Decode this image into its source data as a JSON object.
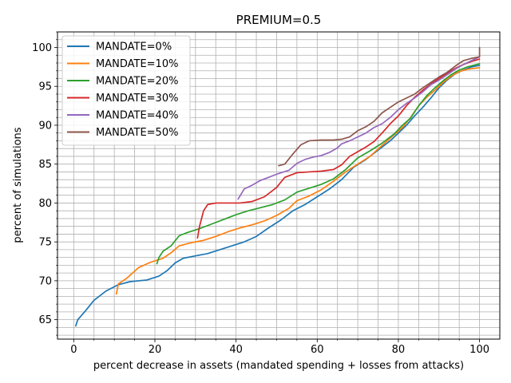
{
  "chart_data": {
    "type": "line",
    "title": "PREMIUM=0.5",
    "xlabel": "percent decrease in assets (mandated spending + losses from attacks)",
    "ylabel": "percent of simulations",
    "xlim": [
      -4,
      105
    ],
    "ylim": [
      62.5,
      102
    ],
    "x_ticks": [
      0,
      20,
      40,
      60,
      80,
      100
    ],
    "y_ticks": [
      65,
      70,
      75,
      80,
      85,
      90,
      95,
      100
    ],
    "x_minor_ticks": [
      5,
      10,
      15,
      25,
      30,
      35,
      45,
      50,
      55,
      65,
      70,
      75,
      85,
      90,
      95
    ],
    "grid": "major and minor, both axes",
    "legend_position": "upper-left",
    "series": [
      {
        "name": "MANDATE=0%",
        "color": "#1f77b4",
        "points": [
          [
            0.5,
            64.2
          ],
          [
            1,
            65
          ],
          [
            3,
            66.2
          ],
          [
            5,
            67.5
          ],
          [
            8,
            68.7
          ],
          [
            11,
            69.5
          ],
          [
            14,
            69.9
          ],
          [
            18,
            70.1
          ],
          [
            21,
            70.6
          ],
          [
            23,
            71.3
          ],
          [
            25,
            72.3
          ],
          [
            27,
            72.9
          ],
          [
            30,
            73.2
          ],
          [
            33,
            73.5
          ],
          [
            36,
            74
          ],
          [
            39,
            74.5
          ],
          [
            42,
            75
          ],
          [
            45,
            75.7
          ],
          [
            48,
            76.8
          ],
          [
            51,
            77.8
          ],
          [
            54,
            79
          ],
          [
            57,
            79.8
          ],
          [
            60,
            80.8
          ],
          [
            63,
            81.8
          ],
          [
            66,
            83
          ],
          [
            69,
            84.6
          ],
          [
            72,
            85.6
          ],
          [
            75,
            86.8
          ],
          [
            78,
            88
          ],
          [
            80,
            89
          ],
          [
            82,
            90
          ],
          [
            84,
            91.2
          ],
          [
            86,
            92.3
          ],
          [
            88,
            93.5
          ],
          [
            90,
            94.8
          ],
          [
            92,
            95.8
          ],
          [
            94,
            96.6
          ],
          [
            96,
            97.1
          ],
          [
            98,
            97.5
          ],
          [
            100,
            97.7
          ]
        ]
      },
      {
        "name": "MANDATE=10%",
        "color": "#ff7f0e",
        "points": [
          [
            10.5,
            68.3
          ],
          [
            11,
            69.6
          ],
          [
            13,
            70.3
          ],
          [
            16,
            71.7
          ],
          [
            19,
            72.4
          ],
          [
            22,
            72.9
          ],
          [
            24,
            73.6
          ],
          [
            26,
            74.5
          ],
          [
            29,
            74.9
          ],
          [
            32,
            75.2
          ],
          [
            35,
            75.7
          ],
          [
            38,
            76.3
          ],
          [
            41,
            76.8
          ],
          [
            44,
            77.2
          ],
          [
            47,
            77.7
          ],
          [
            50,
            78.4
          ],
          [
            53,
            79.3
          ],
          [
            55,
            80.3
          ],
          [
            58,
            80.9
          ],
          [
            61,
            81.7
          ],
          [
            64,
            82.8
          ],
          [
            67,
            84
          ],
          [
            70,
            85
          ],
          [
            73,
            86
          ],
          [
            76,
            87.4
          ],
          [
            79,
            88.8
          ],
          [
            81,
            89.7
          ],
          [
            83,
            91
          ],
          [
            85,
            92.5
          ],
          [
            87,
            93.6
          ],
          [
            89,
            94.5
          ],
          [
            91,
            95.5
          ],
          [
            93,
            96.3
          ],
          [
            95,
            96.9
          ],
          [
            97,
            97.2
          ],
          [
            100,
            97.4
          ]
        ]
      },
      {
        "name": "MANDATE=20%",
        "color": "#2ca02c",
        "points": [
          [
            20.5,
            72.2
          ],
          [
            21,
            73
          ],
          [
            22,
            73.8
          ],
          [
            24,
            74.5
          ],
          [
            26,
            75.8
          ],
          [
            28,
            76.2
          ],
          [
            31,
            76.7
          ],
          [
            34,
            77.3
          ],
          [
            37,
            77.9
          ],
          [
            40,
            78.5
          ],
          [
            43,
            79
          ],
          [
            46,
            79.4
          ],
          [
            49,
            79.8
          ],
          [
            52,
            80.4
          ],
          [
            55,
            81.4
          ],
          [
            58,
            81.9
          ],
          [
            61,
            82.4
          ],
          [
            64,
            83.1
          ],
          [
            67,
            84.3
          ],
          [
            70,
            85.8
          ],
          [
            73,
            86.7
          ],
          [
            76,
            87.7
          ],
          [
            79,
            88.9
          ],
          [
            81,
            90
          ],
          [
            83,
            90.9
          ],
          [
            85,
            92.5
          ],
          [
            87,
            93.8
          ],
          [
            89,
            94.8
          ],
          [
            91,
            95.7
          ],
          [
            93,
            96.5
          ],
          [
            95,
            97.1
          ],
          [
            97,
            97.5
          ],
          [
            100,
            97.9
          ]
        ]
      },
      {
        "name": "MANDATE=30%",
        "color": "#d62728",
        "points": [
          [
            30.5,
            75.5
          ],
          [
            31,
            77
          ],
          [
            32,
            79
          ],
          [
            33,
            79.8
          ],
          [
            35,
            80
          ],
          [
            38,
            80
          ],
          [
            41,
            80
          ],
          [
            44,
            80.2
          ],
          [
            47,
            80.8
          ],
          [
            50,
            82
          ],
          [
            52,
            83.3
          ],
          [
            55,
            83.9
          ],
          [
            58,
            84
          ],
          [
            61,
            84.1
          ],
          [
            64,
            84.3
          ],
          [
            66,
            84.9
          ],
          [
            68,
            86
          ],
          [
            70,
            86.6
          ],
          [
            72,
            87.2
          ],
          [
            74,
            87.9
          ],
          [
            76,
            89
          ],
          [
            78,
            90.2
          ],
          [
            80,
            91.2
          ],
          [
            82,
            92.5
          ],
          [
            84,
            93.6
          ],
          [
            86,
            94.5
          ],
          [
            88,
            95.3
          ],
          [
            90,
            96
          ],
          [
            92,
            96.7
          ],
          [
            94,
            97.3
          ],
          [
            96,
            97.8
          ],
          [
            98,
            98.2
          ],
          [
            100,
            98.5
          ]
        ]
      },
      {
        "name": "MANDATE=40%",
        "color": "#9467bd",
        "points": [
          [
            40.5,
            80.5
          ],
          [
            42,
            81.8
          ],
          [
            44,
            82.3
          ],
          [
            46,
            82.9
          ],
          [
            48,
            83.3
          ],
          [
            50,
            83.7
          ],
          [
            53,
            84.2
          ],
          [
            55,
            85.1
          ],
          [
            57,
            85.6
          ],
          [
            59,
            85.9
          ],
          [
            61,
            86.1
          ],
          [
            63,
            86.5
          ],
          [
            65,
            87.1
          ],
          [
            66,
            87.6
          ],
          [
            68,
            88
          ],
          [
            70,
            88.5
          ],
          [
            72,
            89
          ],
          [
            74,
            89.7
          ],
          [
            76,
            90.2
          ],
          [
            78,
            91
          ],
          [
            80,
            92
          ],
          [
            82,
            92.8
          ],
          [
            84,
            93.5
          ],
          [
            86,
            94.3
          ],
          [
            88,
            95.2
          ],
          [
            90,
            95.8
          ],
          [
            92,
            96.5
          ],
          [
            94,
            97.2
          ],
          [
            96,
            97.8
          ],
          [
            98,
            98.3
          ],
          [
            100,
            98.8
          ]
        ]
      },
      {
        "name": "MANDATE=50%",
        "color": "#8c564b",
        "points": [
          [
            50.5,
            84.8
          ],
          [
            52,
            85
          ],
          [
            54,
            86.3
          ],
          [
            56,
            87.5
          ],
          [
            58,
            88
          ],
          [
            61,
            88.1
          ],
          [
            64,
            88.1
          ],
          [
            66,
            88.2
          ],
          [
            68,
            88.5
          ],
          [
            70,
            89.3
          ],
          [
            72,
            89.8
          ],
          [
            74,
            90.5
          ],
          [
            76,
            91.6
          ],
          [
            78,
            92.3
          ],
          [
            80,
            93
          ],
          [
            82,
            93.5
          ],
          [
            84,
            94
          ],
          [
            86,
            94.8
          ],
          [
            88,
            95.5
          ],
          [
            90,
            96.2
          ],
          [
            92,
            96.8
          ],
          [
            94,
            97.6
          ],
          [
            96,
            98.3
          ],
          [
            98,
            98.6
          ],
          [
            100,
            98.8
          ],
          [
            100,
            100
          ]
        ]
      }
    ]
  }
}
